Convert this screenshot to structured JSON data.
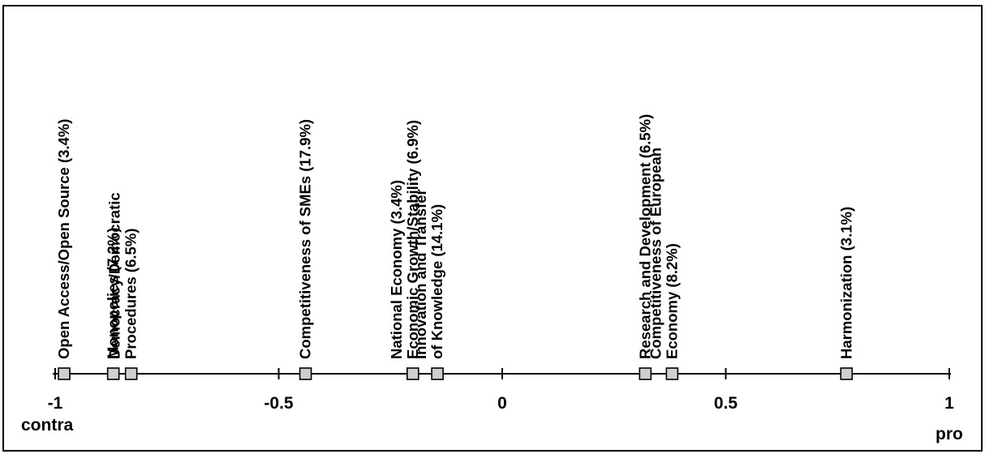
{
  "chart_data": {
    "type": "scatter",
    "title": "",
    "xlabel": "",
    "ylabel": "",
    "xlim": [
      -1,
      1
    ],
    "grid": false,
    "x_ticks": [
      {
        "value": -1,
        "label": "-1"
      },
      {
        "value": -0.5,
        "label": "-0.5"
      },
      {
        "value": 0,
        "label": "0"
      },
      {
        "value": 0.5,
        "label": "0.5"
      },
      {
        "value": 1,
        "label": "1"
      }
    ],
    "axis_end_labels": {
      "left": "contra",
      "right": "pro"
    },
    "points": [
      {
        "x": -0.98,
        "lines": [
          "Open Access/Open Source (3.4%)"
        ]
      },
      {
        "x": -0.87,
        "lines": [
          "Monopolies (7.2%)"
        ]
      },
      {
        "x": -0.83,
        "lines": [
          "Democracy/Democratic",
          "Procedures (6.5%)"
        ]
      },
      {
        "x": -0.44,
        "lines": [
          "Competitiveness of SMEs (17.9%)"
        ]
      },
      {
        "x": -0.2,
        "lines": [
          "National Economy (3.4%)",
          "Economic Growth/Stability (6.9%)"
        ]
      },
      {
        "x": -0.145,
        "lines": [
          "Innovation and Transfer",
          "of Knowledge (14.1%)"
        ]
      },
      {
        "x": 0.32,
        "lines": [
          "Research and Development (6.5%)"
        ]
      },
      {
        "x": 0.38,
        "lines": [
          "Competitiveness of European",
          "Economy (8.2%)"
        ]
      },
      {
        "x": 0.77,
        "lines": [
          "Harmonization (3.1%)"
        ]
      }
    ]
  }
}
